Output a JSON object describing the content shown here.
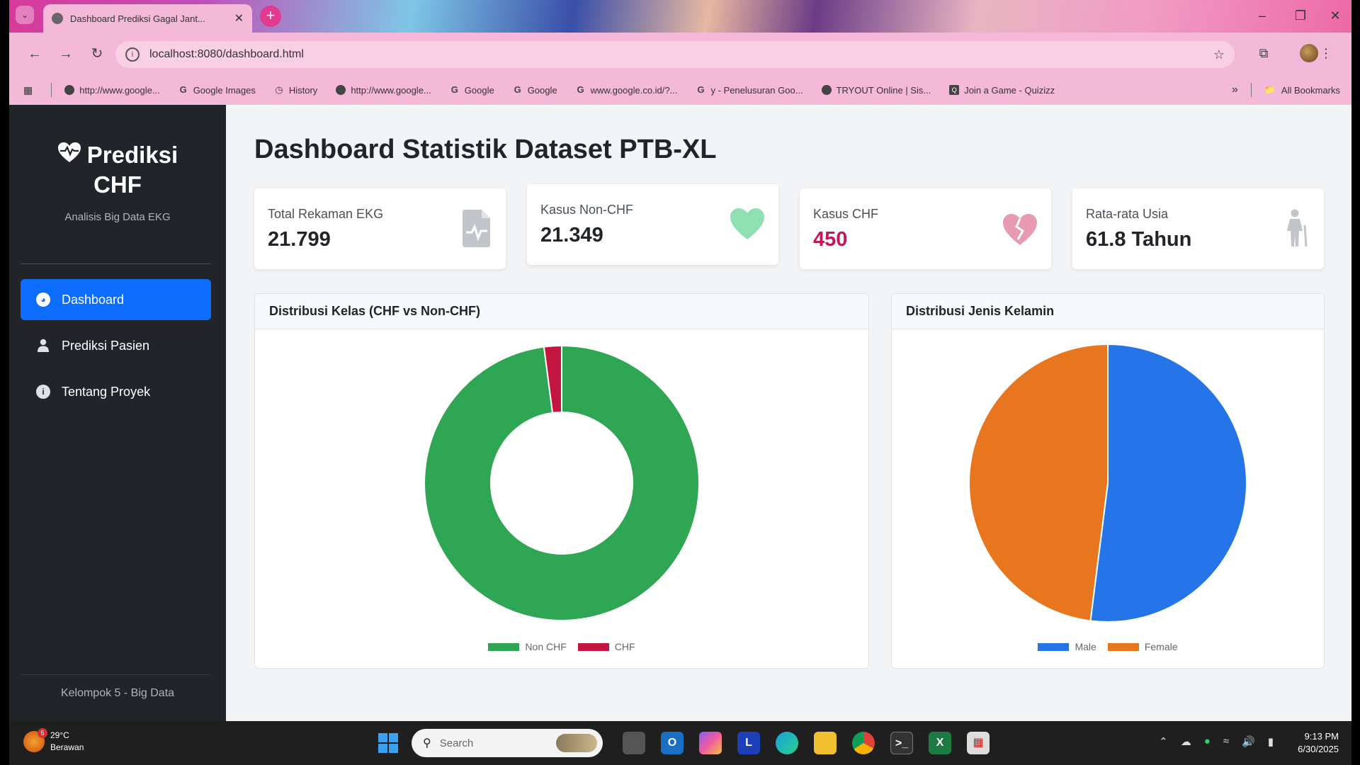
{
  "browser": {
    "tab_title": "Dashboard Prediksi Gagal Jant...",
    "url": "localhost:8080/dashboard.html",
    "bookmarks": [
      "http://www.google...",
      "Google Images",
      "History",
      "http://www.google...",
      "Google",
      "Google",
      "www.google.co.id/?...",
      "y - Penelusuran Goo...",
      "TRYOUT Online | Sis...",
      "Join a Game - Quizizz"
    ],
    "all_bookmarks": "All Bookmarks"
  },
  "sidebar": {
    "brand_line1": "Prediksi",
    "brand_line2": "CHF",
    "subtitle": "Analisis Big Data EKG",
    "items": [
      {
        "label": "Dashboard",
        "icon": "gauge-icon"
      },
      {
        "label": "Prediksi Pasien",
        "icon": "user-icon"
      },
      {
        "label": "Tentang Proyek",
        "icon": "info-icon"
      }
    ],
    "footer": "Kelompok 5 - Big Data"
  },
  "main": {
    "title": "Dashboard Statistik Dataset PTB-XL",
    "stats": [
      {
        "label": "Total Rekaman EKG",
        "value": "21.799",
        "icon": "file-medical-icon",
        "color": "#bfc3c7"
      },
      {
        "label": "Kasus Non-CHF",
        "value": "21.349",
        "icon": "heart-icon",
        "color": "#8fe0b0"
      },
      {
        "label": "Kasus CHF",
        "value": "450",
        "icon": "heart-broken-icon",
        "color": "#e89ab0"
      },
      {
        "label": "Rata-rata Usia",
        "value": "61.8 Tahun",
        "icon": "person-icon",
        "color": "#bfc3c7"
      }
    ]
  },
  "charts": {
    "class_title": "Distribusi Kelas (CHF vs Non-CHF)",
    "gender_title": "Distribusi Jenis Kelamin"
  },
  "chart_data": [
    {
      "type": "pie",
      "variant": "doughnut",
      "title": "Distribusi Kelas (CHF vs Non-CHF)",
      "categories": [
        "Non CHF",
        "CHF"
      ],
      "values": [
        21349,
        450
      ],
      "colors": [
        "#2ea653",
        "#c2153f"
      ],
      "legend": "bottom"
    },
    {
      "type": "pie",
      "title": "Distribusi Jenis Kelamin",
      "categories": [
        "Male",
        "Female"
      ],
      "values": [
        52,
        48
      ],
      "colors": [
        "#2575e8",
        "#e8761e"
      ],
      "legend": "bottom"
    }
  ],
  "taskbar": {
    "temp": "29°C",
    "weather": "Berawan",
    "weather_badge": "5",
    "search_placeholder": "Search",
    "time": "9:13 PM",
    "date": "6/30/2025"
  }
}
